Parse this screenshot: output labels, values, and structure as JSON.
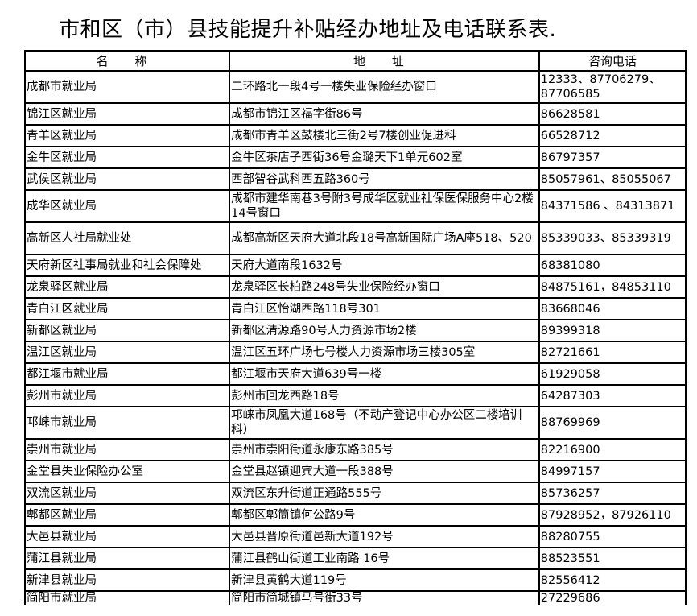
{
  "title": "市和区（市）县技能提升补贴经办地址及电话联系表.",
  "headers": [
    "名 称",
    "地 址",
    "咨询电话"
  ],
  "rows": [
    {
      "name": "成都市就业局",
      "address": "二环路北一段4号一楼失业保险经办窗口",
      "phone": "12333、87706279、87706585",
      "tall": true
    },
    {
      "name": "锦江区就业局",
      "address": "成都市锦江区福字街86号",
      "phone": "86628581"
    },
    {
      "name": "青羊区就业局",
      "address": "成都市青羊区鼓楼北三街2号7楼创业促进科",
      "phone": "66528712"
    },
    {
      "name": "金牛区就业局",
      "address": "金牛区茶店子西街36号金璐天下1单元602室",
      "phone": "86797357"
    },
    {
      "name": "武侯区就业局",
      "address": "西部智谷武科西五路360号",
      "phone": "85057961、85055067"
    },
    {
      "name": "成华区就业局",
      "address": "成都市建华南巷3号附3号成华区就业社保医保服务中心2楼14号窗口",
      "phone": "84371586 、84313871",
      "tall": true
    },
    {
      "name": "高新区人社局就业处",
      "address": "成都高新区天府大道北段18号高新国际广场A座518、520",
      "phone": "85339033、85339319",
      "tall": true
    },
    {
      "name": "天府新区社事局就业和社会保障处",
      "address": "天府大道南段1632号",
      "phone": "68381080"
    },
    {
      "name": "龙泉驿区就业局",
      "address": "龙泉驿区长柏路248号失业保险经办窗口",
      "phone": "84875161，84853110"
    },
    {
      "name": "青白江区就业局",
      "address": "青白江区怡湖西路118号301",
      "phone": "83668046"
    },
    {
      "name": "新都区就业局",
      "address": "新都区清源路90号人力资源市场2楼",
      "phone": "89399318"
    },
    {
      "name": "温江区就业局",
      "address": "温江区五环广场七号楼人力资源市场三楼305室",
      "phone": "82721661"
    },
    {
      "name": "都江堰市就业局",
      "address": "都江堰市天府大道639号一楼",
      "phone": "61929058"
    },
    {
      "name": "彭州市就业局",
      "address": "彭州市回龙西路18号",
      "phone": "64287303"
    },
    {
      "name": "邛崃市就业局",
      "address": "邛崃市凤凰大道168号（不动产登记中心办公区二楼培训科）",
      "phone": "88769969",
      "tall": true
    },
    {
      "name": "崇州市就业局",
      "address": "崇州市崇阳街道永康东路385号",
      "phone": "82216900"
    },
    {
      "name": "金堂县失业保险办公室",
      "address": "金堂县赵镇迎宾大道一段388号",
      "phone": "84997157"
    },
    {
      "name": "双流区就业局",
      "address": "双流区东升街道正通路555号",
      "phone": "85736257"
    },
    {
      "name": "郫都区就业局",
      "address": "郫都区郫筒镇何公路9号",
      "phone": "87928952，87926110"
    },
    {
      "name": "大邑县就业局",
      "address": "大邑县晋原街道邑新大道192号",
      "phone": "88280755"
    },
    {
      "name": "蒲江县就业局",
      "address": "蒲江县鹤山街道工业南路 16号",
      "phone": "88523551"
    },
    {
      "name": "新津县就业局",
      "address": "新津县黄鹤大道119号",
      "phone": "82556412"
    },
    {
      "name": "简阳市就业局",
      "address": "简阳市简城镇马号街33号",
      "phone": "27229686"
    }
  ]
}
